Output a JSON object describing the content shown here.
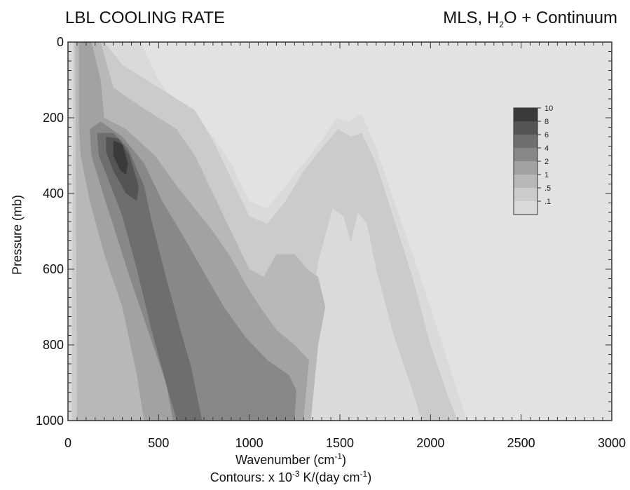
{
  "title_left": "LBL COOLING RATE",
  "title_right": {
    "pre": "MLS, H",
    "sub": "2",
    "post": "O + Continuum"
  },
  "xlabel": {
    "text": "Wavenumber (cm",
    "sup": "-1",
    "end": ")"
  },
  "ylabel": "Pressure (mb)",
  "caption": {
    "pre": "Contours:  x 10",
    "sup": "-3",
    "mid": "  K/(day cm",
    "sup2": "-1",
    "end": ")"
  },
  "chart_data": {
    "type": "heatmap",
    "x_range": [
      0,
      3000
    ],
    "y_range": [
      1000,
      0
    ],
    "y_inverted": true,
    "x_ticks": [
      0,
      500,
      1000,
      1500,
      2000,
      2500,
      3000
    ],
    "x_tick_labels": [
      "0",
      "500",
      "1000",
      "1500",
      "2000",
      "2500",
      "3000"
    ],
    "y_ticks": [
      0,
      200,
      400,
      600,
      800,
      1000
    ],
    "y_tick_labels": [
      "0",
      "200",
      "400",
      "600",
      "800",
      "1000"
    ],
    "colorbar": {
      "levels": [
        10,
        8,
        6,
        4,
        2,
        1,
        0.5,
        0.1
      ],
      "labels": [
        "10",
        "8",
        "6",
        "4",
        "2",
        "1",
        ".5",
        ".1"
      ],
      "colors": [
        "#3a3a3a",
        "#545454",
        "#6e6e6e",
        "#888888",
        "#a2a2a2",
        "#b8b8b8",
        "#cbcbcb",
        "#dadada"
      ]
    },
    "background_color": "#e2e2e2",
    "contour_regions": [
      {
        "level": 0.1,
        "points": [
          [
            0,
            0
          ],
          [
            400,
            0
          ],
          [
            500,
            100
          ],
          [
            620,
            180
          ],
          [
            700,
            200
          ],
          [
            800,
            250
          ],
          [
            900,
            320
          ],
          [
            1000,
            420
          ],
          [
            1100,
            440
          ],
          [
            1200,
            380
          ],
          [
            1300,
            320
          ],
          [
            1400,
            260
          ],
          [
            1480,
            200
          ],
          [
            1550,
            210
          ],
          [
            1620,
            190
          ],
          [
            1700,
            280
          ],
          [
            1800,
            420
          ],
          [
            1900,
            560
          ],
          [
            2000,
            700
          ],
          [
            2100,
            850
          ],
          [
            2200,
            1000
          ],
          [
            0,
            1000
          ]
        ]
      },
      {
        "level": 0.5,
        "points": [
          [
            30,
            0
          ],
          [
            200,
            0
          ],
          [
            300,
            60
          ],
          [
            500,
            120
          ],
          [
            700,
            180
          ],
          [
            800,
            260
          ],
          [
            900,
            360
          ],
          [
            1000,
            460
          ],
          [
            1100,
            480
          ],
          [
            1200,
            420
          ],
          [
            1300,
            340
          ],
          [
            1400,
            280
          ],
          [
            1490,
            230
          ],
          [
            1560,
            250
          ],
          [
            1620,
            240
          ],
          [
            1700,
            320
          ],
          [
            1800,
            470
          ],
          [
            1900,
            620
          ],
          [
            2000,
            800
          ],
          [
            2100,
            940
          ],
          [
            2150,
            1000
          ],
          [
            1950,
            1000
          ],
          [
            1900,
            920
          ],
          [
            1800,
            780
          ],
          [
            1700,
            600
          ],
          [
            1650,
            480
          ],
          [
            1600,
            450
          ],
          [
            1560,
            530
          ],
          [
            1520,
            460
          ],
          [
            1460,
            440
          ],
          [
            1380,
            580
          ],
          [
            1320,
            760
          ],
          [
            1280,
            900
          ],
          [
            1250,
            1000
          ],
          [
            20,
            1000
          ]
        ]
      },
      {
        "level": 1,
        "points": [
          [
            40,
            0
          ],
          [
            180,
            0
          ],
          [
            250,
            120
          ],
          [
            400,
            170
          ],
          [
            600,
            230
          ],
          [
            700,
            300
          ],
          [
            800,
            400
          ],
          [
            900,
            500
          ],
          [
            1000,
            600
          ],
          [
            1080,
            620
          ],
          [
            1150,
            560
          ],
          [
            1250,
            560
          ],
          [
            1320,
            600
          ],
          [
            1380,
            620
          ],
          [
            1420,
            700
          ],
          [
            1380,
            800
          ],
          [
            1360,
            900
          ],
          [
            1340,
            1000
          ],
          [
            50,
            1000
          ]
        ]
      },
      {
        "level": 2,
        "points": [
          [
            60,
            0
          ],
          [
            130,
            0
          ],
          [
            180,
            100
          ],
          [
            200,
            200
          ],
          [
            320,
            230
          ],
          [
            480,
            300
          ],
          [
            600,
            380
          ],
          [
            700,
            440
          ],
          [
            800,
            500
          ],
          [
            900,
            570
          ],
          [
            980,
            640
          ],
          [
            1060,
            700
          ],
          [
            1150,
            760
          ],
          [
            1250,
            800
          ],
          [
            1330,
            840
          ],
          [
            1310,
            940
          ],
          [
            1300,
            1000
          ],
          [
            420,
            1000
          ],
          [
            380,
            880
          ],
          [
            300,
            700
          ],
          [
            200,
            560
          ],
          [
            120,
            420
          ],
          [
            70,
            300
          ],
          [
            60,
            220
          ]
        ]
      },
      {
        "level": 4,
        "points": [
          [
            120,
            230
          ],
          [
            180,
            210
          ],
          [
            300,
            250
          ],
          [
            420,
            320
          ],
          [
            520,
            420
          ],
          [
            620,
            500
          ],
          [
            740,
            600
          ],
          [
            860,
            700
          ],
          [
            980,
            780
          ],
          [
            1100,
            840
          ],
          [
            1220,
            880
          ],
          [
            1260,
            920
          ],
          [
            1250,
            1000
          ],
          [
            580,
            1000
          ],
          [
            540,
            900
          ],
          [
            440,
            760
          ],
          [
            340,
            620
          ],
          [
            260,
            500
          ],
          [
            180,
            380
          ],
          [
            130,
            300
          ]
        ]
      },
      {
        "level": 6,
        "points": [
          [
            160,
            240
          ],
          [
            250,
            240
          ],
          [
            330,
            280
          ],
          [
            420,
            380
          ],
          [
            460,
            470
          ],
          [
            540,
            620
          ],
          [
            620,
            760
          ],
          [
            680,
            860
          ],
          [
            740,
            1000
          ],
          [
            600,
            1000
          ],
          [
            540,
            900
          ],
          [
            460,
            760
          ],
          [
            380,
            600
          ],
          [
            300,
            460
          ],
          [
            220,
            360
          ],
          [
            170,
            300
          ]
        ]
      },
      {
        "level": 8,
        "points": [
          [
            210,
            250
          ],
          [
            280,
            255
          ],
          [
            340,
            300
          ],
          [
            390,
            380
          ],
          [
            380,
            420
          ],
          [
            320,
            400
          ],
          [
            250,
            340
          ],
          [
            210,
            290
          ]
        ]
      },
      {
        "level": 10,
        "points": [
          [
            250,
            260
          ],
          [
            300,
            270
          ],
          [
            330,
            320
          ],
          [
            320,
            350
          ],
          [
            290,
            340
          ],
          [
            250,
            300
          ]
        ]
      }
    ]
  }
}
